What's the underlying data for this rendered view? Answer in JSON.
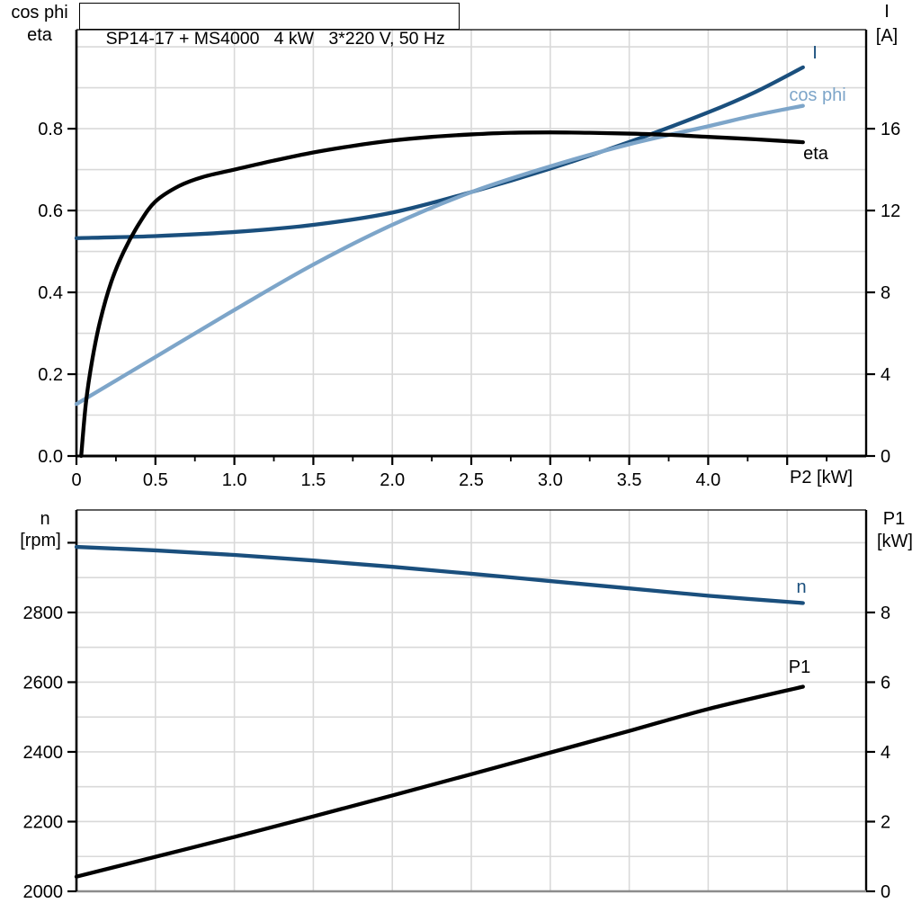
{
  "colors": {
    "dark_blue": "#1a4f7d",
    "light_blue": "#7da5c9",
    "black": "#000000",
    "grid": "#d9d9d9",
    "gray_axis": "#8c8c8c",
    "background": "#ffffff"
  },
  "chart_data": [
    {
      "id": "top",
      "type": "line",
      "title": "SP14-17 + MS4000   4 kW   3*220 V, 50 Hz",
      "x_axis": {
        "label": "P2 [kW]",
        "range": [
          0,
          5
        ],
        "grid_step": 0.5,
        "minor_tick_step": 0.25,
        "ticks": [
          {
            "v": 0,
            "label": "0"
          },
          {
            "v": 0.5,
            "label": "0.5"
          },
          {
            "v": 1,
            "label": "1.0"
          },
          {
            "v": 1.5,
            "label": "1.5"
          },
          {
            "v": 2,
            "label": "2.0"
          },
          {
            "v": 2.5,
            "label": "2.5"
          },
          {
            "v": 3,
            "label": "3.0"
          },
          {
            "v": 3.5,
            "label": "3.5"
          },
          {
            "v": 4,
            "label": "4.0"
          },
          {
            "v": 4.5,
            "label": ""
          }
        ]
      },
      "left_axis": {
        "title_lines": [
          "cos phi",
          "eta"
        ],
        "range": [
          0,
          1.042
        ],
        "grid_step": 0.1,
        "ticks": [
          {
            "v": 0,
            "label": "0.0"
          },
          {
            "v": 0.2,
            "label": "0.2"
          },
          {
            "v": 0.4,
            "label": "0.4"
          },
          {
            "v": 0.6,
            "label": "0.6"
          },
          {
            "v": 0.8,
            "label": "0.8"
          }
        ]
      },
      "right_axis": {
        "title_lines": [
          "I",
          "[A]"
        ],
        "range": [
          0,
          20.84
        ],
        "ticks": [
          {
            "v": 0,
            "label": "0"
          },
          {
            "v": 4,
            "label": "4"
          },
          {
            "v": 8,
            "label": "8"
          },
          {
            "v": 12,
            "label": "12"
          },
          {
            "v": 16,
            "label": "16"
          }
        ]
      },
      "series": [
        {
          "name": "I",
          "label": "I",
          "axis": "right",
          "color_key": "dark_blue",
          "x": [
            0,
            0.5,
            1,
            1.5,
            2,
            2.5,
            3,
            3.5,
            4,
            4.3,
            4.6
          ],
          "y": [
            10.65,
            10.75,
            10.95,
            11.3,
            11.9,
            12.9,
            14.05,
            15.35,
            16.8,
            17.8,
            19.0
          ]
        },
        {
          "name": "cos phi",
          "label": "cos phi",
          "axis": "left",
          "color_key": "light_blue",
          "x": [
            0,
            0.5,
            1,
            1.5,
            2,
            2.5,
            3,
            3.5,
            4,
            4.3,
            4.6
          ],
          "y": [
            0.127,
            0.242,
            0.357,
            0.468,
            0.565,
            0.645,
            0.708,
            0.762,
            0.806,
            0.833,
            0.856
          ]
        },
        {
          "name": "eta",
          "label": "eta",
          "axis": "left",
          "color_key": "black",
          "x": [
            0.03,
            0.06,
            0.1,
            0.15,
            0.22,
            0.3,
            0.4,
            0.5,
            0.65,
            0.8,
            1.0,
            1.25,
            1.5,
            1.75,
            2.0,
            2.25,
            2.5,
            2.75,
            3.0,
            3.25,
            3.5,
            3.75,
            4.0,
            4.3,
            4.6
          ],
          "y": [
            0,
            0.13,
            0.235,
            0.33,
            0.425,
            0.5,
            0.57,
            0.622,
            0.66,
            0.682,
            0.7,
            0.722,
            0.742,
            0.758,
            0.771,
            0.78,
            0.786,
            0.79,
            0.791,
            0.79,
            0.788,
            0.785,
            0.78,
            0.774,
            0.767
          ]
        }
      ]
    },
    {
      "id": "bottom",
      "type": "line",
      "x_axis": {
        "label": "",
        "range": [
          0,
          5
        ],
        "grid_step": 0.5,
        "minor_tick_step": null,
        "ticks": []
      },
      "left_axis": {
        "title_lines": [
          "n",
          "[rpm]"
        ],
        "range": [
          2000,
          3094
        ],
        "grid_step": 100,
        "ticks": [
          {
            "v": 2000,
            "label": "2000"
          },
          {
            "v": 2200,
            "label": "2200"
          },
          {
            "v": 2400,
            "label": "2400"
          },
          {
            "v": 2600,
            "label": "2600"
          },
          {
            "v": 2800,
            "label": "2800"
          },
          {
            "v": 3000,
            "label": ""
          }
        ]
      },
      "right_axis": {
        "title_lines": [
          "P1",
          "[kW]"
        ],
        "range": [
          0,
          10.94
        ],
        "ticks": [
          {
            "v": 0,
            "label": "0"
          },
          {
            "v": 2,
            "label": "2"
          },
          {
            "v": 4,
            "label": "4"
          },
          {
            "v": 6,
            "label": "6"
          },
          {
            "v": 8,
            "label": "8"
          }
        ]
      },
      "series": [
        {
          "name": "n",
          "label": "n",
          "axis": "left",
          "color_key": "dark_blue",
          "x": [
            0,
            0.5,
            1,
            1.5,
            2,
            2.5,
            3,
            3.5,
            4,
            4.6
          ],
          "y": [
            2988,
            2978,
            2965,
            2949,
            2931,
            2911,
            2890,
            2869,
            2848,
            2827
          ]
        },
        {
          "name": "P1",
          "label": "P1",
          "axis": "right",
          "color_key": "black",
          "x": [
            0,
            0.5,
            1,
            1.5,
            2,
            2.5,
            3,
            3.5,
            4,
            4.6
          ],
          "y": [
            0.42,
            0.99,
            1.56,
            2.15,
            2.75,
            3.36,
            3.98,
            4.6,
            5.23,
            5.87
          ]
        }
      ]
    }
  ]
}
